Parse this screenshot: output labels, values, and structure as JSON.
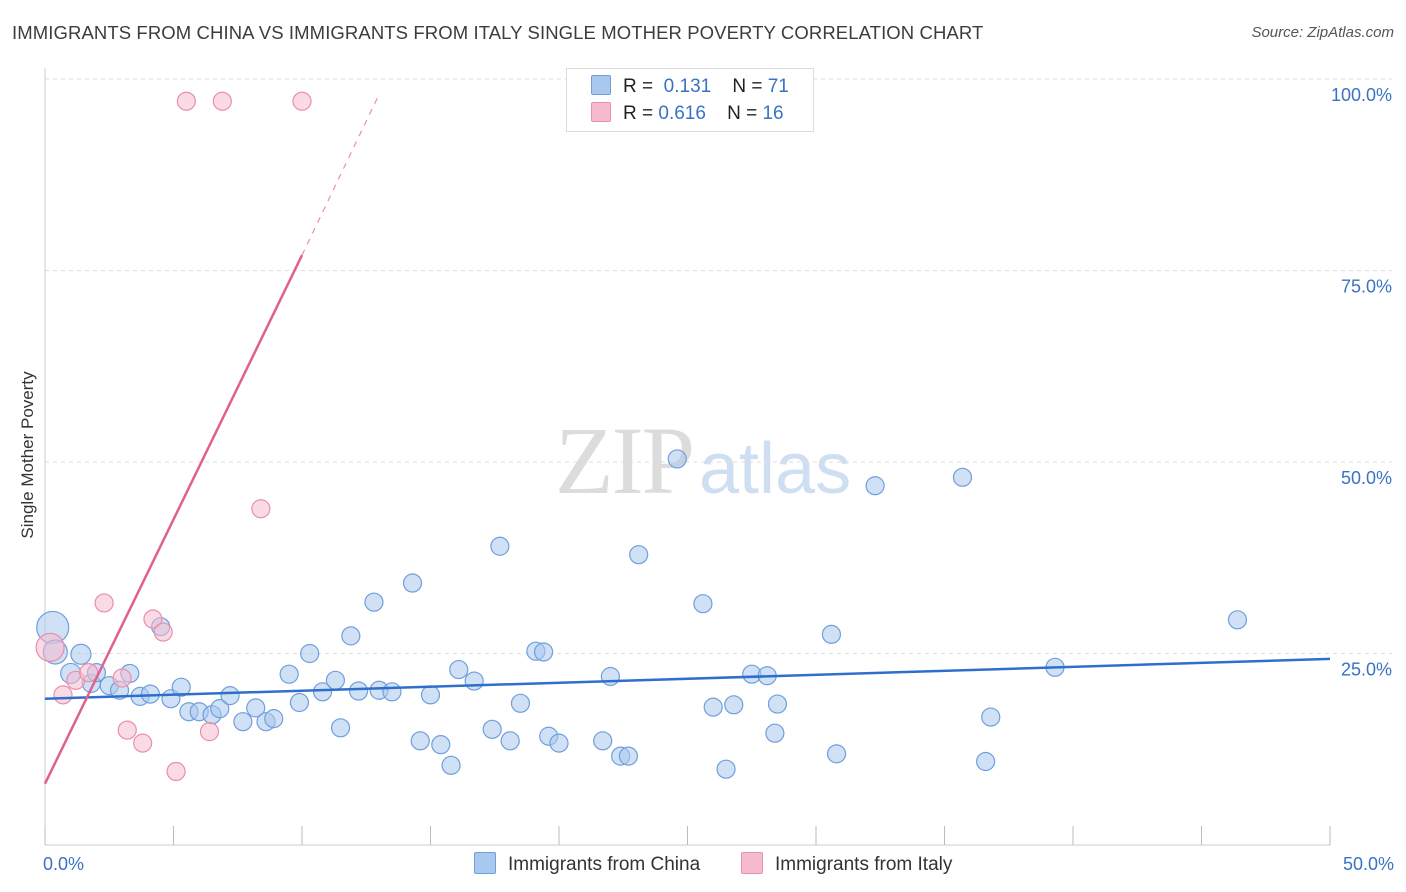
{
  "title": "IMMIGRANTS FROM CHINA VS IMMIGRANTS FROM ITALY SINGLE MOTHER POVERTY CORRELATION CHART",
  "source": "Source: ZipAtlas.com",
  "watermark": {
    "zip": "ZIP",
    "atlas": "atlas"
  },
  "legend_top": {
    "china": {
      "r_label": "R =",
      "r_value": "0.131",
      "n_label": "N =",
      "n_value": "71"
    },
    "italy": {
      "r_label": "R =",
      "r_value": "0.616",
      "n_label": "N =",
      "n_value": "16"
    }
  },
  "legend_bottom": {
    "china": "Immigrants from China",
    "italy": "Immigrants from Italy"
  },
  "colors": {
    "china_fill": "#a9c8ee",
    "china_stroke": "#6f9fdc",
    "china_line": "#2e6fcc",
    "italy_fill": "#f6bccd",
    "italy_stroke": "#e98fab",
    "italy_line": "#e0608f",
    "tick_label": "#3a72c4",
    "grid": "#dddddd"
  },
  "chart_data": {
    "type": "scatter",
    "title": "IMMIGRANTS FROM CHINA VS IMMIGRANTS FROM ITALY SINGLE MOTHER POVERTY CORRELATION CHART",
    "xlabel": "",
    "ylabel": "Single Mother Poverty",
    "xlim": [
      0,
      50
    ],
    "ylim": [
      0,
      100
    ],
    "x_tick_labels": [
      {
        "value": 0,
        "label": "0.0%"
      },
      {
        "value": 50,
        "label": "50.0%"
      }
    ],
    "y_tick_labels": [
      {
        "value": 25,
        "label": "25.0%"
      },
      {
        "value": 50,
        "label": "50.0%"
      },
      {
        "value": 75,
        "label": "75.0%"
      },
      {
        "value": 100,
        "label": "100.0%"
      }
    ],
    "grid": true,
    "series": [
      {
        "name": "Immigrants from China",
        "r": 0.131,
        "n": 71,
        "trend": {
          "x0": 0,
          "y0": 19.1,
          "x1": 50,
          "y1": 24.3,
          "dashed_to": null
        },
        "points": [
          {
            "x": 0.3,
            "y": 28.4,
            "s": 16
          },
          {
            "x": 0.4,
            "y": 25.2,
            "s": 12
          },
          {
            "x": 1.0,
            "y": 22.4,
            "s": 10
          },
          {
            "x": 1.4,
            "y": 24.9,
            "s": 10
          },
          {
            "x": 1.8,
            "y": 21.1,
            "s": 9
          },
          {
            "x": 2.5,
            "y": 20.8,
            "s": 9
          },
          {
            "x": 2.9,
            "y": 20.2,
            "s": 9
          },
          {
            "x": 3.3,
            "y": 22.4,
            "s": 9
          },
          {
            "x": 3.7,
            "y": 19.4,
            "s": 9
          },
          {
            "x": 4.1,
            "y": 19.7,
            "s": 9
          },
          {
            "x": 4.5,
            "y": 28.5,
            "s": 9
          },
          {
            "x": 4.9,
            "y": 19.1,
            "s": 9
          },
          {
            "x": 5.3,
            "y": 20.6,
            "s": 9
          },
          {
            "x": 5.6,
            "y": 17.4,
            "s": 9
          },
          {
            "x": 6.0,
            "y": 17.4,
            "s": 9
          },
          {
            "x": 6.5,
            "y": 17.0,
            "s": 9
          },
          {
            "x": 6.8,
            "y": 17.8,
            "s": 9
          },
          {
            "x": 7.2,
            "y": 19.5,
            "s": 9
          },
          {
            "x": 7.7,
            "y": 16.1,
            "s": 9
          },
          {
            "x": 8.2,
            "y": 17.9,
            "s": 9
          },
          {
            "x": 8.6,
            "y": 16.1,
            "s": 9
          },
          {
            "x": 8.9,
            "y": 16.5,
            "s": 9
          },
          {
            "x": 9.5,
            "y": 22.3,
            "s": 9
          },
          {
            "x": 9.9,
            "y": 18.6,
            "s": 9
          },
          {
            "x": 10.3,
            "y": 25.0,
            "s": 9
          },
          {
            "x": 10.8,
            "y": 20.0,
            "s": 9
          },
          {
            "x": 11.3,
            "y": 21.5,
            "s": 9
          },
          {
            "x": 11.5,
            "y": 15.3,
            "s": 9
          },
          {
            "x": 11.9,
            "y": 27.3,
            "s": 9
          },
          {
            "x": 12.2,
            "y": 20.1,
            "s": 9
          },
          {
            "x": 12.8,
            "y": 31.7,
            "s": 9
          },
          {
            "x": 13.0,
            "y": 20.2,
            "s": 9
          },
          {
            "x": 13.5,
            "y": 20.0,
            "s": 9
          },
          {
            "x": 14.3,
            "y": 34.2,
            "s": 9
          },
          {
            "x": 14.6,
            "y": 13.6,
            "s": 9
          },
          {
            "x": 15.0,
            "y": 19.6,
            "s": 9
          },
          {
            "x": 15.4,
            "y": 13.1,
            "s": 9
          },
          {
            "x": 15.8,
            "y": 10.4,
            "s": 9
          },
          {
            "x": 16.1,
            "y": 22.9,
            "s": 9
          },
          {
            "x": 16.7,
            "y": 21.4,
            "s": 9
          },
          {
            "x": 17.4,
            "y": 15.1,
            "s": 9
          },
          {
            "x": 17.7,
            "y": 39.0,
            "s": 9
          },
          {
            "x": 18.1,
            "y": 13.6,
            "s": 9
          },
          {
            "x": 18.5,
            "y": 18.5,
            "s": 9
          },
          {
            "x": 19.1,
            "y": 25.3,
            "s": 9
          },
          {
            "x": 19.4,
            "y": 25.2,
            "s": 9
          },
          {
            "x": 19.6,
            "y": 14.2,
            "s": 9
          },
          {
            "x": 20.0,
            "y": 13.3,
            "s": 9
          },
          {
            "x": 21.7,
            "y": 13.6,
            "s": 9
          },
          {
            "x": 22.0,
            "y": 22.0,
            "s": 9
          },
          {
            "x": 22.4,
            "y": 11.6,
            "s": 9
          },
          {
            "x": 22.7,
            "y": 11.6,
            "s": 9
          },
          {
            "x": 23.1,
            "y": 37.9,
            "s": 9
          },
          {
            "x": 24.6,
            "y": 50.4,
            "s": 9
          },
          {
            "x": 25.6,
            "y": 31.5,
            "s": 9
          },
          {
            "x": 26.0,
            "y": 18.0,
            "s": 9
          },
          {
            "x": 26.5,
            "y": 9.9,
            "s": 9
          },
          {
            "x": 26.8,
            "y": 18.3,
            "s": 9
          },
          {
            "x": 27.5,
            "y": 22.3,
            "s": 9
          },
          {
            "x": 28.1,
            "y": 22.1,
            "s": 9
          },
          {
            "x": 28.4,
            "y": 14.6,
            "s": 9
          },
          {
            "x": 28.5,
            "y": 18.4,
            "s": 9
          },
          {
            "x": 30.6,
            "y": 27.5,
            "s": 9
          },
          {
            "x": 30.8,
            "y": 11.9,
            "s": 9
          },
          {
            "x": 32.3,
            "y": 46.9,
            "s": 9
          },
          {
            "x": 35.7,
            "y": 48.0,
            "s": 9
          },
          {
            "x": 36.8,
            "y": 16.7,
            "s": 9
          },
          {
            "x": 36.6,
            "y": 10.9,
            "s": 9
          },
          {
            "x": 39.3,
            "y": 23.2,
            "s": 9
          },
          {
            "x": 46.4,
            "y": 29.4,
            "s": 9
          },
          {
            "x": 2.0,
            "y": 22.5,
            "s": 9
          }
        ]
      },
      {
        "name": "Immigrants from Italy",
        "r": 0.616,
        "n": 16,
        "trend": {
          "x0": 0,
          "y0": 8.0,
          "x1": 10.0,
          "y1": 77.0,
          "dashed_to": {
            "x": 13.0,
            "y": 98.0
          }
        },
        "points": [
          {
            "x": 0.2,
            "y": 25.8,
            "s": 14
          },
          {
            "x": 0.7,
            "y": 19.6,
            "s": 9
          },
          {
            "x": 1.2,
            "y": 21.5,
            "s": 9
          },
          {
            "x": 1.7,
            "y": 22.5,
            "s": 9
          },
          {
            "x": 2.3,
            "y": 31.6,
            "s": 9
          },
          {
            "x": 3.0,
            "y": 21.8,
            "s": 9
          },
          {
            "x": 3.2,
            "y": 15.0,
            "s": 9
          },
          {
            "x": 3.8,
            "y": 13.3,
            "s": 9
          },
          {
            "x": 4.2,
            "y": 29.5,
            "s": 9
          },
          {
            "x": 4.6,
            "y": 27.8,
            "s": 9
          },
          {
            "x": 5.1,
            "y": 9.6,
            "s": 9
          },
          {
            "x": 6.4,
            "y": 14.8,
            "s": 9
          },
          {
            "x": 8.4,
            "y": 43.9,
            "s": 9
          },
          {
            "x": 5.5,
            "y": 97.1,
            "s": 9
          },
          {
            "x": 6.9,
            "y": 97.1,
            "s": 9
          },
          {
            "x": 10.0,
            "y": 97.1,
            "s": 9
          }
        ]
      }
    ]
  }
}
